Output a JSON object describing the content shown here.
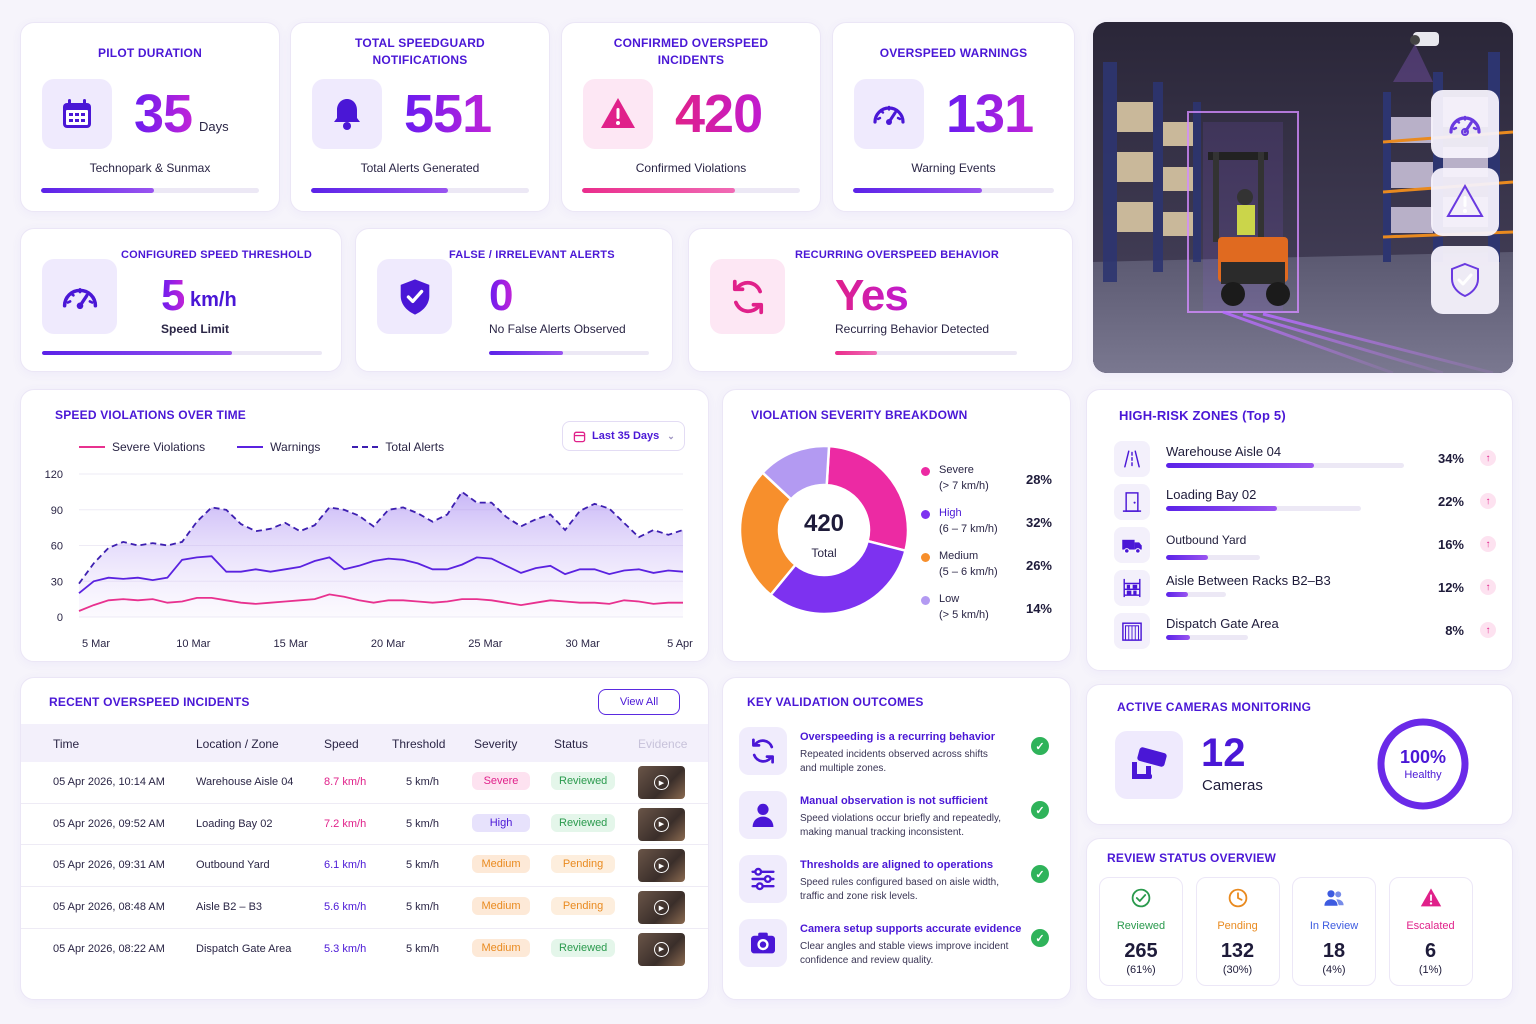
{
  "kpi_top": [
    {
      "title": "PILOT DURATION",
      "value": "35",
      "unit": "Days",
      "sub": "Technopark & Sunmax",
      "progress": 0.52,
      "icon": "calendar-icon",
      "tone": "purple"
    },
    {
      "title": "TOTAL SPEEDGUARD NOTIFICATIONS",
      "value": "551",
      "unit": "",
      "sub": "Total Alerts Generated",
      "progress": 0.63,
      "icon": "bell-icon",
      "tone": "purple"
    },
    {
      "title": "CONFIRMED OVERSPEED INCIDENTS",
      "value": "420",
      "unit": "",
      "sub": "Confirmed Violations",
      "progress": 0.7,
      "icon": "warning-icon",
      "tone": "pink"
    },
    {
      "title": "OVERSPEED WARNINGS",
      "value": "131",
      "unit": "",
      "sub": "Warning Events",
      "progress": 0.64,
      "icon": "speedometer-icon",
      "tone": "purple"
    }
  ],
  "kpi_mid": [
    {
      "title": "CONFIGURED SPEED THRESHOLD",
      "value": "5",
      "unit": "km/h",
      "sub": "Speed Limit",
      "progress": 0.68,
      "icon": "speedometer-icon",
      "tone": "purple"
    },
    {
      "title": "FALSE / IRRELEVANT ALERTS",
      "value": "0",
      "unit": "",
      "sub": "No False Alerts Observed",
      "progress": 0.46,
      "icon": "shield-check-icon",
      "tone": "purple"
    },
    {
      "title": "RECURRING OVERSPEED BEHAVIOR",
      "value": "Yes",
      "unit": "",
      "sub": "Recurring Behavior Detected",
      "progress": 0.23,
      "icon": "refresh-icon",
      "tone": "pink"
    }
  ],
  "speed_chart": {
    "title": "SPEED VIOLATIONS OVER TIME",
    "filter_label": "Last 35 Days",
    "legend": [
      "Severe Violations",
      "Warnings",
      "Total Alerts"
    ],
    "colors": {
      "severe": "#e8318f",
      "warnings": "#5a22e0",
      "total": "#3d1fb0"
    }
  },
  "chart_data": [
    {
      "type": "line",
      "title": "SPEED VIOLATIONS OVER TIME",
      "x_ticks": [
        "5 Mar",
        "10 Mar",
        "15 Mar",
        "20 Mar",
        "25 Mar",
        "30 Mar",
        "5 Apr"
      ],
      "yticks": [
        0,
        30,
        60,
        90,
        120
      ],
      "ylim": [
        0,
        120
      ],
      "series": [
        {
          "name": "Total Alerts",
          "style": "dashed-area",
          "values": [
            28,
            45,
            58,
            63,
            60,
            62,
            60,
            63,
            80,
            92,
            90,
            78,
            72,
            74,
            79,
            72,
            77,
            92,
            90,
            85,
            76,
            90,
            92,
            87,
            80,
            86,
            105,
            96,
            96,
            84,
            76,
            82,
            86,
            73,
            89,
            95,
            91,
            79,
            67,
            73,
            69,
            73
          ]
        },
        {
          "name": "Warnings",
          "values": [
            20,
            30,
            33,
            32,
            33,
            31,
            33,
            48,
            50,
            51,
            38,
            38,
            40,
            38,
            40,
            42,
            47,
            50,
            40,
            43,
            47,
            49,
            48,
            45,
            40,
            40,
            44,
            50,
            49,
            43,
            37,
            41,
            43,
            36,
            40,
            40,
            36,
            39,
            40,
            37,
            39,
            38
          ]
        },
        {
          "name": "Severe Violations",
          "values": [
            5,
            10,
            14,
            15,
            14,
            15,
            12,
            13,
            16,
            16,
            14,
            12,
            11,
            12,
            13,
            14,
            15,
            19,
            17,
            14,
            12,
            14,
            14,
            13,
            12,
            13,
            15,
            15,
            14,
            12,
            10,
            12,
            14,
            13,
            12,
            12,
            11,
            14,
            13,
            11,
            12,
            12
          ]
        }
      ]
    },
    {
      "type": "pie",
      "title": "VIOLATION SEVERITY BREAKDOWN",
      "center_value": "420",
      "center_label": "Total",
      "slices": [
        {
          "label": "Severe",
          "range": "(> 7 km/h)",
          "pct": 28,
          "color": "#ec2aa3"
        },
        {
          "label": "High",
          "range": "(6 – 7 km/h)",
          "pct": 32,
          "color": "#7d32f0"
        },
        {
          "label": "Medium",
          "range": "(5 – 6 km/h)",
          "pct": 26,
          "color": "#f78f2c"
        },
        {
          "label": "Low",
          "range": "(> 5 km/h)",
          "pct": 14,
          "color": "#b39af2"
        }
      ]
    }
  ],
  "risk_zones": {
    "title": "HIGH-RISK ZONES (Top 5)",
    "items": [
      {
        "name": "Warehouse Aisle 04",
        "pct": "34%",
        "value": 0.62,
        "icon": "aisle-icon"
      },
      {
        "name": "Loading Bay 02",
        "pct": "22%",
        "value": 0.57,
        "icon": "door-icon"
      },
      {
        "name": "Outbound Yard",
        "pct": "16%",
        "value": 0.45,
        "icon": "truck-icon"
      },
      {
        "name": "Aisle Between Racks B2–B3",
        "pct": "12%",
        "value": 0.36,
        "icon": "rack-icon"
      },
      {
        "name": "Dispatch Gate Area",
        "pct": "8%",
        "value": 0.29,
        "icon": "gate-icon"
      }
    ]
  },
  "incidents": {
    "title": "RECENT OVERSPEED INCIDENTS",
    "view_all": "View All",
    "headers": [
      "Time",
      "Location / Zone",
      "Speed",
      "Threshold",
      "Severity",
      "Status",
      "Evidence"
    ],
    "rows": [
      {
        "time": "05 Apr 2026, 10:14 AM",
        "location": "Warehouse Aisle 04",
        "speed": "8.7 km/h",
        "threshold": "5 km/h",
        "severity": "Severe",
        "status": "Reviewed"
      },
      {
        "time": "05 Apr 2026, 09:52 AM",
        "location": "Loading Bay 02",
        "speed": "7.2 km/h",
        "threshold": "5 km/h",
        "severity": "High",
        "status": "Reviewed"
      },
      {
        "time": "05 Apr 2026, 09:31 AM",
        "location": "Outbound Yard",
        "speed": "6.1 km/h",
        "threshold": "5 km/h",
        "severity": "Medium",
        "status": "Pending"
      },
      {
        "time": "05 Apr 2026, 08:48 AM",
        "location": "Aisle B2 – B3",
        "speed": "5.6 km/h",
        "threshold": "5 km/h",
        "severity": "Medium",
        "status": "Pending"
      },
      {
        "time": "05 Apr 2026, 08:22 AM",
        "location": "Dispatch Gate Area",
        "speed": "5.3 km/h",
        "threshold": "5 km/h",
        "severity": "Medium",
        "status": "Reviewed"
      }
    ]
  },
  "outcomes": {
    "title": "KEY VALIDATION OUTCOMES",
    "items": [
      {
        "title": "Overspeeding is a recurring behavior",
        "desc1": "Repeated incidents observed across shifts",
        "desc2": "and multiple zones.",
        "icon": "refresh-icon"
      },
      {
        "title": "Manual observation is not sufficient",
        "desc1": "Speed violations occur briefly and repeatedly,",
        "desc2": "making manual tracking inconsistent.",
        "icon": "person-icon"
      },
      {
        "title": "Thresholds are aligned to operations",
        "desc1": "Speed rules configured based on aisle width,",
        "desc2": "traffic and zone risk levels.",
        "icon": "sliders-icon"
      },
      {
        "title": "Camera setup supports accurate evidence",
        "desc1": "Clear angles and stable views improve incident",
        "desc2": "confidence and review quality.",
        "icon": "camera-icon"
      }
    ]
  },
  "cameras": {
    "title": "ACTIVE CAMERAS MONITORING",
    "count": "12",
    "label": "Cameras",
    "health": "100%",
    "health_label": "Healthy",
    "health_value": 1.0
  },
  "review": {
    "title": "REVIEW STATUS OVERVIEW",
    "items": [
      {
        "label": "Reviewed",
        "value": "265",
        "pct": "(61%)",
        "color": "#2a9a4d",
        "bg": "#fff",
        "icon": "check-circle-icon"
      },
      {
        "label": "Pending",
        "value": "132",
        "pct": "(30%)",
        "color": "#e98a1f",
        "bg": "#fff",
        "icon": "clock-icon"
      },
      {
        "label": "In Review",
        "value": "18",
        "pct": "(4%)",
        "color": "#3d5be0",
        "bg": "#fff",
        "icon": "users-icon"
      },
      {
        "label": "Escalated",
        "value": "6",
        "pct": "(1%)",
        "color": "#e0218a",
        "bg": "#fff",
        "icon": "warning-icon"
      }
    ]
  },
  "hero": {
    "side_icons": [
      "speedometer-icon",
      "warning-icon",
      "shield-check-icon"
    ]
  }
}
